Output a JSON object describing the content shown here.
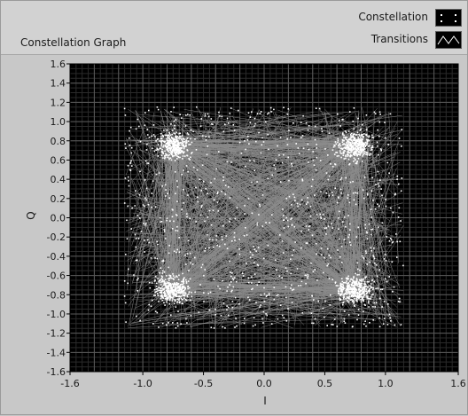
{
  "panel": {
    "title": "Constellation Graph"
  },
  "legend": {
    "items": [
      {
        "label": "Constellation",
        "icon": "constellation-points-icon"
      },
      {
        "label": "Transitions",
        "icon": "transitions-line-icon"
      }
    ]
  },
  "colors": {
    "plot_background": "#000000",
    "grid_major": "#5a5a5a",
    "grid_minor": "#2a2a2a",
    "points": "#ffffff",
    "transitions": "#8c8c8c",
    "panel": "#c8c8c8"
  },
  "chart_data": {
    "type": "scatter",
    "title": "Constellation Graph",
    "xlabel": "I",
    "ylabel": "Q",
    "xlim": [
      -1.6,
      1.6
    ],
    "ylim": [
      -1.6,
      1.6
    ],
    "x_ticks": [
      "-1.6",
      "-1.0",
      "-0.5",
      "0.0",
      "0.5",
      "1.0",
      "1.6"
    ],
    "y_ticks": [
      "1.6",
      "1.4",
      "1.2",
      "1.0",
      "0.8",
      "0.6",
      "0.4",
      "0.2",
      "0.0",
      "-0.2",
      "-0.4",
      "-0.6",
      "-0.8",
      "-1.0",
      "-1.2",
      "-1.4",
      "-1.6"
    ],
    "grid": true,
    "legend_position": "top-right",
    "series": [
      {
        "name": "Constellation",
        "mark": "points"
      },
      {
        "name": "Transitions",
        "mark": "lines"
      }
    ],
    "constellation_points": [
      {
        "I": -0.75,
        "Q": 0.75
      },
      {
        "I": 0.75,
        "Q": 0.75
      },
      {
        "I": -0.75,
        "Q": -0.75
      },
      {
        "I": 0.75,
        "Q": -0.75
      }
    ],
    "transition_region": {
      "I": [
        -1.15,
        1.15
      ],
      "Q": [
        -1.15,
        1.15
      ]
    }
  }
}
